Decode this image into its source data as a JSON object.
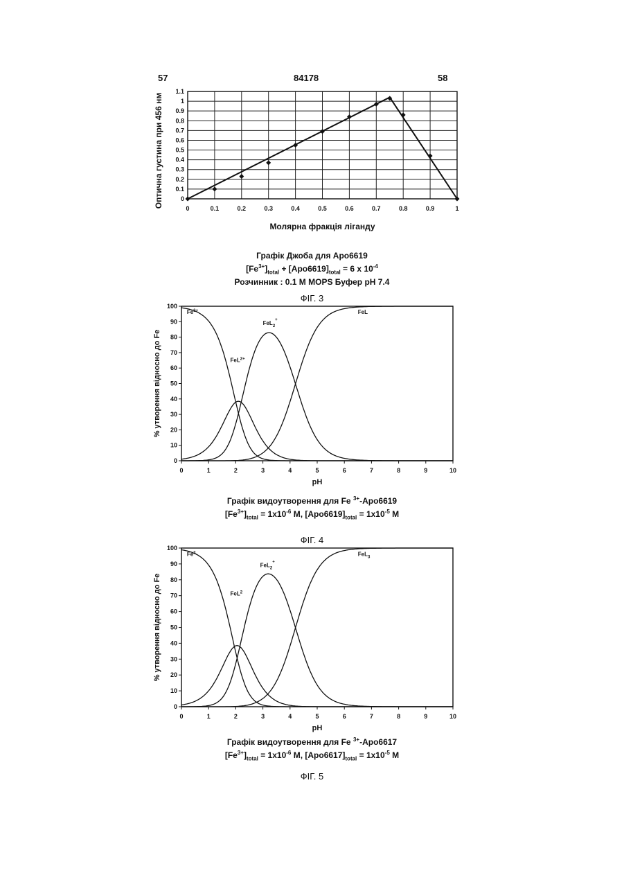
{
  "header": {
    "left_page": "57",
    "doc_number": "84178",
    "right_page": "58"
  },
  "chart_data": [
    {
      "type": "line",
      "ylabel": "Оптична густина при 456 нм",
      "xlabel": "Молярна фракція ліганду",
      "xlim": [
        0,
        1
      ],
      "ylim": [
        0,
        1.1
      ],
      "xticks": [
        0,
        0.1,
        0.2,
        0.3,
        0.4,
        0.5,
        0.6,
        0.7,
        0.8,
        0.9,
        1
      ],
      "yticks": [
        0,
        0.1,
        0.2,
        0.3,
        0.4,
        0.5,
        0.6,
        0.7,
        0.8,
        0.9,
        1,
        1.1
      ],
      "grid": true,
      "points": [
        [
          0,
          0
        ],
        [
          0.1,
          0.1
        ],
        [
          0.2,
          0.23
        ],
        [
          0.3,
          0.37
        ],
        [
          0.4,
          0.55
        ],
        [
          0.5,
          0.69
        ],
        [
          0.6,
          0.84
        ],
        [
          0.7,
          0.97
        ],
        [
          0.75,
          1.03
        ],
        [
          0.8,
          0.86
        ],
        [
          0.9,
          0.44
        ],
        [
          1,
          0
        ]
      ],
      "fit_lines": [
        [
          [
            0,
            0
          ],
          [
            0.75,
            1.04
          ]
        ],
        [
          [
            0.75,
            1.04
          ],
          [
            1,
            0
          ]
        ]
      ],
      "caption": {
        "title": "Графік Джоба для Apo6619",
        "line2_pre": "[Fe",
        "line2_sup1": "3+",
        "line2_t1": "]",
        "line2_sub1": "total",
        "line2_mid": " + [Apo6619]",
        "line2_sub2": "total",
        "line2_post": " = 6 x 10",
        "line2_sup2": "-4",
        "line3": "Розчинник : 0.1 M MOPS Буфер pH 7.4"
      },
      "figure_label": "ФІГ. 3"
    },
    {
      "type": "line",
      "ylabel": "% утворення відносно до Fe",
      "xlabel": "pH",
      "xlim": [
        0,
        10
      ],
      "ylim": [
        0,
        100
      ],
      "xticks": [
        0,
        1,
        2,
        3,
        4,
        5,
        6,
        7,
        8,
        9,
        10
      ],
      "yticks": [
        0,
        10,
        20,
        30,
        40,
        50,
        60,
        70,
        80,
        90,
        100
      ],
      "grid": false,
      "logK": [
        2.0,
        2.2,
        4.2
      ],
      "series_labels": [
        {
          "base": "Fe",
          "sup": "3+",
          "sub": "",
          "sup2": "",
          "x": 0.2,
          "y": 95
        },
        {
          "base": "FeL",
          "sup": "2+",
          "sub": "",
          "sup2": "",
          "x": 1.8,
          "y": 64
        },
        {
          "base": "FeL",
          "sup": "",
          "sub": "2",
          "sup2": "+",
          "x": 3.0,
          "y": 88
        },
        {
          "base": "FeL",
          "sup": "",
          "sub": "",
          "sup2": "",
          "x": 6.5,
          "y": 95
        }
      ],
      "caption": {
        "title_pre": "Графік видоутворення для Fe",
        "title_sup": "3+",
        "title_post": "-Apo6619",
        "line2_pre": "[Fe",
        "line2_sup1": "3+",
        "line2_t1": "]",
        "line2_sub1": "total",
        "line2_mid": " = 1x10",
        "line2_sup2": "-6",
        "line2_t2": " M, [Apo6619]",
        "line2_sub2": "total",
        "line2_t3": " = 1x10",
        "line2_sup3": "-5",
        "line2_post": " M"
      },
      "figure_label": "ФІГ. 4"
    },
    {
      "type": "line",
      "ylabel": "% утворення відносно до Fe",
      "xlabel": "pH",
      "xlim": [
        0,
        10
      ],
      "ylim": [
        0,
        100
      ],
      "xticks": [
        0,
        1,
        2,
        3,
        4,
        5,
        6,
        7,
        8,
        9,
        10
      ],
      "yticks": [
        0,
        10,
        20,
        30,
        40,
        50,
        60,
        70,
        80,
        90,
        100
      ],
      "grid": false,
      "logK": [
        1.95,
        2.15,
        4.2
      ],
      "series_labels": [
        {
          "base": "Fe",
          "sup": "3",
          "sub": "",
          "sup2": "",
          "x": 0.2,
          "y": 95
        },
        {
          "base": "FeL",
          "sup": "2",
          "sub": "",
          "sup2": "",
          "x": 1.8,
          "y": 70
        },
        {
          "base": "FeL",
          "sup": "",
          "sub": "2",
          "sup2": "+",
          "x": 2.9,
          "y": 88
        },
        {
          "base": "FeL",
          "sup": "",
          "sub": "3",
          "sup2": "",
          "x": 6.5,
          "y": 95
        }
      ],
      "caption": {
        "title_pre": "Графік видоутворення для Fe",
        "title_sup": "3+",
        "title_post": "-Apo6617",
        "line2_pre": "[Fe",
        "line2_sup1": "3+",
        "line2_t1": "]",
        "line2_sub1": "total",
        "line2_mid": " = 1x10",
        "line2_sup2": "-6",
        "line2_t2": " M, [Apo6617]",
        "line2_sub2": "total",
        "line2_t3": " = 1x10",
        "line2_sup3": "-5",
        "line2_post": " M"
      },
      "figure_label": "ФІГ. 5"
    }
  ]
}
